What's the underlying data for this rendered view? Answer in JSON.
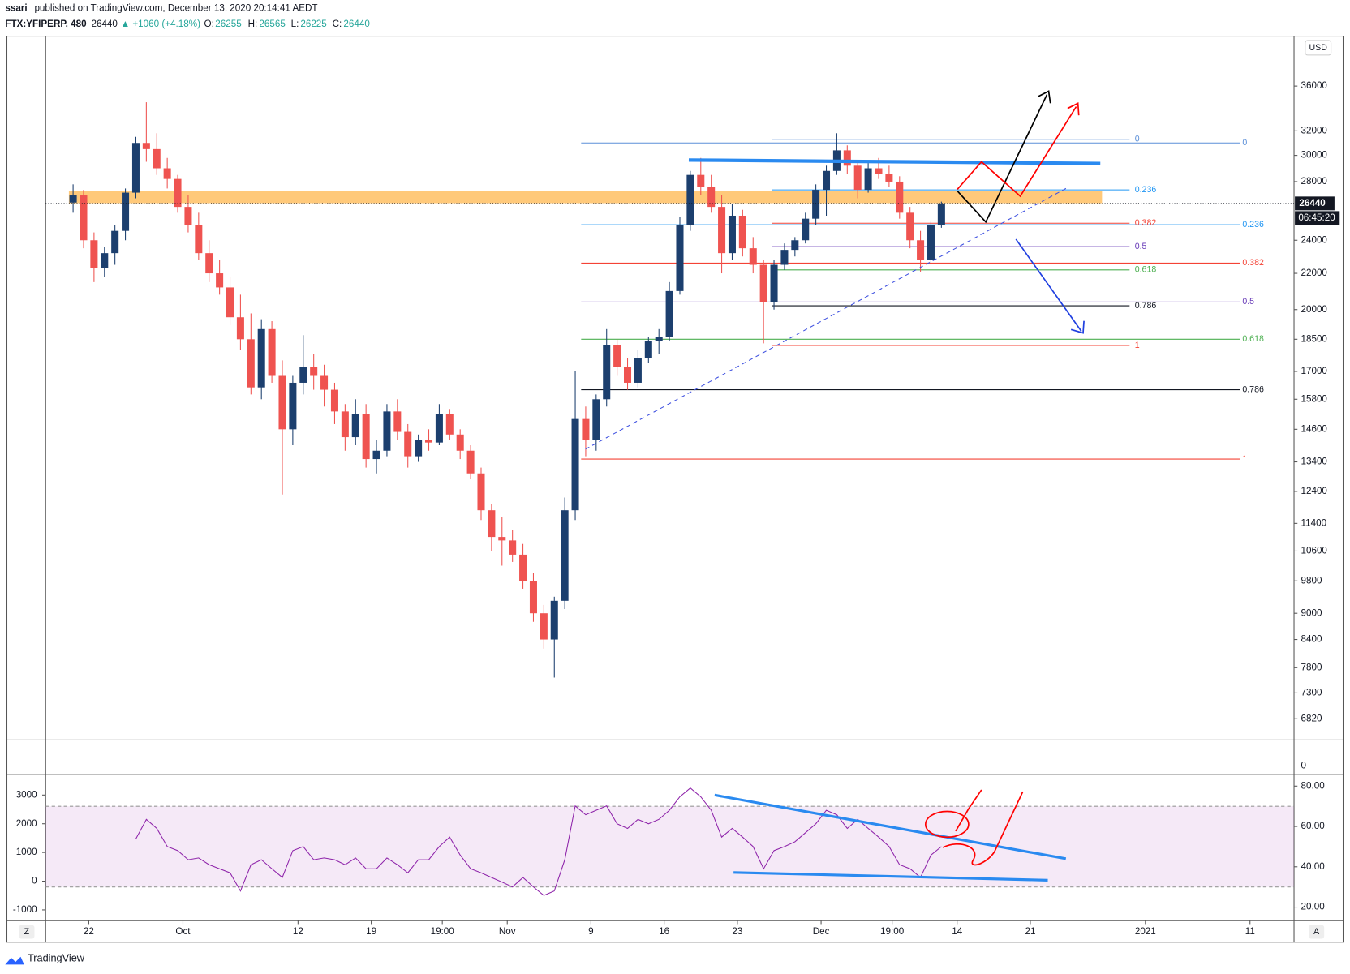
{
  "header": {
    "author": "ssari",
    "published": "published on TradingView.com, December 13, 2020 20:14:41 AEDT",
    "symbol": "FTX:YFIPERP, 480",
    "last": 26440,
    "change": "▲ +1060 (+4.18%)",
    "open_label": "O:",
    "open": 26255,
    "high_label": "H:",
    "high": 26565,
    "low_label": "L:",
    "low": 26225,
    "close_label": "C:",
    "close": 26440
  },
  "chart_data": {
    "type": "candlestick",
    "currency": "USD",
    "log_scale": true,
    "up_color": "#1c3f6e",
    "down_color": "#ef5350",
    "ylim": [
      6450,
      41050
    ],
    "yticks": [
      36000,
      32000,
      30000,
      28000,
      24000,
      22000,
      20000,
      18500,
      17000,
      15800,
      14600,
      13400,
      12400,
      11400,
      10600,
      9800,
      9000,
      8400,
      7800,
      7300,
      6820
    ],
    "xlim": [
      "2020-09-17T21:00",
      "2021-01-15T05:00"
    ],
    "xticks": [
      {
        "value": "2020-09-22",
        "label": "22"
      },
      {
        "value": "2020-10-01",
        "label": "Oct"
      },
      {
        "value": "2020-10-12",
        "label": "12"
      },
      {
        "value": "2020-10-19",
        "label": "19"
      },
      {
        "value": "2020-10-25T19:00",
        "label": "19:00"
      },
      {
        "value": "2020-11-01",
        "label": "Nov"
      },
      {
        "value": "2020-11-09",
        "label": "9"
      },
      {
        "value": "2020-11-16",
        "label": "16"
      },
      {
        "value": "2020-11-23",
        "label": "23"
      },
      {
        "value": "2020-12-01",
        "label": "Dec"
      },
      {
        "value": "2020-12-07T19:00",
        "label": "19:00"
      },
      {
        "value": "2020-12-14",
        "label": "14"
      },
      {
        "value": "2020-12-21",
        "label": "21"
      },
      {
        "value": "2021-01-01",
        "label": "2021"
      },
      {
        "value": "2021-01-11",
        "label": "11"
      }
    ],
    "last_price": 26440,
    "countdown": "06:45:20",
    "zone": [
      26460,
      27320
    ],
    "candles": [
      {
        "date": "2020-09-20",
        "open": 26500,
        "high": 27800,
        "low": 25800,
        "close": 27000
      },
      {
        "date": "2020-09-21",
        "open": 27000,
        "high": 27400,
        "low": 23500,
        "close": 24000
      },
      {
        "date": "2020-09-22",
        "open": 24000,
        "high": 24500,
        "low": 21500,
        "close": 22300
      },
      {
        "date": "2020-09-23",
        "open": 22300,
        "high": 23600,
        "low": 21800,
        "close": 23200
      },
      {
        "date": "2020-09-24",
        "open": 23200,
        "high": 25000,
        "low": 22500,
        "close": 24600
      },
      {
        "date": "2020-09-25",
        "open": 24600,
        "high": 27500,
        "low": 24000,
        "close": 27200
      },
      {
        "date": "2020-09-26",
        "open": 27200,
        "high": 31500,
        "low": 26800,
        "close": 31000
      },
      {
        "date": "2020-09-27",
        "open": 31000,
        "high": 34500,
        "low": 29500,
        "close": 30500
      },
      {
        "date": "2020-09-28",
        "open": 30500,
        "high": 31800,
        "low": 28500,
        "close": 29000
      },
      {
        "date": "2020-09-29",
        "open": 29000,
        "high": 29800,
        "low": 27500,
        "close": 28200
      },
      {
        "date": "2020-09-30",
        "open": 28200,
        "high": 28500,
        "low": 25800,
        "close": 26200
      },
      {
        "date": "2020-10-01",
        "open": 26200,
        "high": 27000,
        "low": 24500,
        "close": 25000
      },
      {
        "date": "2020-10-02",
        "open": 25000,
        "high": 25800,
        "low": 22800,
        "close": 23200
      },
      {
        "date": "2020-10-03",
        "open": 23200,
        "high": 24000,
        "low": 21500,
        "close": 22000
      },
      {
        "date": "2020-10-04",
        "open": 22000,
        "high": 22800,
        "low": 20800,
        "close": 21200
      },
      {
        "date": "2020-10-05",
        "open": 21200,
        "high": 21800,
        "low": 19200,
        "close": 19600
      },
      {
        "date": "2020-10-06",
        "open": 19600,
        "high": 20800,
        "low": 18000,
        "close": 18500
      },
      {
        "date": "2020-10-07",
        "open": 18500,
        "high": 19800,
        "low": 16000,
        "close": 16300
      },
      {
        "date": "2020-10-08",
        "open": 16300,
        "high": 19500,
        "low": 15800,
        "close": 19000
      },
      {
        "date": "2020-10-09",
        "open": 19000,
        "high": 19400,
        "low": 16500,
        "close": 16800
      },
      {
        "date": "2020-10-10",
        "open": 16800,
        "high": 17500,
        "low": 12300,
        "close": 14600
      },
      {
        "date": "2020-10-11",
        "open": 14600,
        "high": 16800,
        "low": 14000,
        "close": 16500
      },
      {
        "date": "2020-10-12",
        "open": 16500,
        "high": 18700,
        "low": 16000,
        "close": 17200
      },
      {
        "date": "2020-10-13",
        "open": 17200,
        "high": 17800,
        "low": 16200,
        "close": 16800
      },
      {
        "date": "2020-10-14",
        "open": 16800,
        "high": 17300,
        "low": 15500,
        "close": 16200
      },
      {
        "date": "2020-10-15",
        "open": 16200,
        "high": 16500,
        "low": 14800,
        "close": 15300
      },
      {
        "date": "2020-10-16",
        "open": 15300,
        "high": 15600,
        "low": 13800,
        "close": 14300
      },
      {
        "date": "2020-10-17",
        "open": 14300,
        "high": 15800,
        "low": 14000,
        "close": 15200
      },
      {
        "date": "2020-10-18",
        "open": 15200,
        "high": 15600,
        "low": 13200,
        "close": 13500
      },
      {
        "date": "2020-10-19",
        "open": 13500,
        "high": 14200,
        "low": 13000,
        "close": 13800
      },
      {
        "date": "2020-10-20",
        "open": 13800,
        "high": 15600,
        "low": 13600,
        "close": 15300
      },
      {
        "date": "2020-10-21",
        "open": 15300,
        "high": 15800,
        "low": 14200,
        "close": 14500
      },
      {
        "date": "2020-10-22",
        "open": 14500,
        "high": 14800,
        "low": 13200,
        "close": 13600
      },
      {
        "date": "2020-10-23",
        "open": 13600,
        "high": 14400,
        "low": 13400,
        "close": 14200
      },
      {
        "date": "2020-10-24",
        "open": 14200,
        "high": 14600,
        "low": 13800,
        "close": 14100
      },
      {
        "date": "2020-10-25",
        "open": 14100,
        "high": 15600,
        "low": 14000,
        "close": 15200
      },
      {
        "date": "2020-10-26",
        "open": 15200,
        "high": 15400,
        "low": 14200,
        "close": 14400
      },
      {
        "date": "2020-10-27",
        "open": 14400,
        "high": 14600,
        "low": 13500,
        "close": 13800
      },
      {
        "date": "2020-10-28",
        "open": 13800,
        "high": 14000,
        "low": 12800,
        "close": 13000
      },
      {
        "date": "2020-10-29",
        "open": 13000,
        "high": 13200,
        "low": 11500,
        "close": 11800
      },
      {
        "date": "2020-10-30",
        "open": 11800,
        "high": 12000,
        "low": 10600,
        "close": 11000
      },
      {
        "date": "2020-10-31",
        "open": 11000,
        "high": 11600,
        "low": 10200,
        "close": 10900
      },
      {
        "date": "2020-11-01",
        "open": 10900,
        "high": 11200,
        "low": 10300,
        "close": 10500
      },
      {
        "date": "2020-11-02",
        "open": 10500,
        "high": 10800,
        "low": 9600,
        "close": 9800
      },
      {
        "date": "2020-11-03",
        "open": 9800,
        "high": 10000,
        "low": 8800,
        "close": 9000
      },
      {
        "date": "2020-11-04",
        "open": 9000,
        "high": 9200,
        "low": 8200,
        "close": 8400
      },
      {
        "date": "2020-11-05",
        "open": 8400,
        "high": 9400,
        "low": 7600,
        "close": 9300
      },
      {
        "date": "2020-11-06",
        "open": 9300,
        "high": 12200,
        "low": 9100,
        "close": 11800
      },
      {
        "date": "2020-11-07",
        "open": 11800,
        "high": 17000,
        "low": 11500,
        "close": 15000
      },
      {
        "date": "2020-11-08",
        "open": 15000,
        "high": 15500,
        "low": 13600,
        "close": 14200
      },
      {
        "date": "2020-11-09",
        "open": 14200,
        "high": 16000,
        "low": 13800,
        "close": 15800
      },
      {
        "date": "2020-11-10",
        "open": 15800,
        "high": 19000,
        "low": 15500,
        "close": 18200
      },
      {
        "date": "2020-11-11",
        "open": 18200,
        "high": 18500,
        "low": 16800,
        "close": 17200
      },
      {
        "date": "2020-11-12",
        "open": 17200,
        "high": 17600,
        "low": 16200,
        "close": 16500
      },
      {
        "date": "2020-11-13",
        "open": 16500,
        "high": 18000,
        "low": 16300,
        "close": 17600
      },
      {
        "date": "2020-11-14",
        "open": 17600,
        "high": 18600,
        "low": 17400,
        "close": 18400
      },
      {
        "date": "2020-11-15",
        "open": 18400,
        "high": 19000,
        "low": 17800,
        "close": 18600
      },
      {
        "date": "2020-11-16",
        "open": 18600,
        "high": 21500,
        "low": 18400,
        "close": 21000
      },
      {
        "date": "2020-11-17",
        "open": 21000,
        "high": 25500,
        "low": 20800,
        "close": 25000
      },
      {
        "date": "2020-11-18",
        "open": 25000,
        "high": 28800,
        "low": 24600,
        "close": 28500
      },
      {
        "date": "2020-11-19",
        "open": 28500,
        "high": 29800,
        "low": 27000,
        "close": 27600
      },
      {
        "date": "2020-11-20",
        "open": 27600,
        "high": 28500,
        "low": 25800,
        "close": 26200
      },
      {
        "date": "2020-11-21",
        "open": 26200,
        "high": 27000,
        "low": 22000,
        "close": 23200
      },
      {
        "date": "2020-11-22",
        "open": 23200,
        "high": 26400,
        "low": 22800,
        "close": 25600
      },
      {
        "date": "2020-11-23",
        "open": 25600,
        "high": 26000,
        "low": 23000,
        "close": 23500
      },
      {
        "date": "2020-11-24",
        "open": 23500,
        "high": 24200,
        "low": 22000,
        "close": 22500
      },
      {
        "date": "2020-11-25",
        "open": 22500,
        "high": 22800,
        "low": 18300,
        "close": 20400
      },
      {
        "date": "2020-11-26",
        "open": 20400,
        "high": 22800,
        "low": 20000,
        "close": 22500
      },
      {
        "date": "2020-11-27",
        "open": 22500,
        "high": 23800,
        "low": 22200,
        "close": 23400
      },
      {
        "date": "2020-11-28",
        "open": 23400,
        "high": 24200,
        "low": 23000,
        "close": 24000
      },
      {
        "date": "2020-11-29",
        "open": 24000,
        "high": 25800,
        "low": 23800,
        "close": 25400
      },
      {
        "date": "2020-11-30",
        "open": 25400,
        "high": 27800,
        "low": 25000,
        "close": 27400
      },
      {
        "date": "2020-12-01",
        "open": 27400,
        "high": 29200,
        "low": 25600,
        "close": 28800
      },
      {
        "date": "2020-12-02",
        "open": 28800,
        "high": 31800,
        "low": 28500,
        "close": 30400
      },
      {
        "date": "2020-12-03",
        "open": 30400,
        "high": 30800,
        "low": 28600,
        "close": 29200
      },
      {
        "date": "2020-12-04",
        "open": 29200,
        "high": 29500,
        "low": 26800,
        "close": 27400
      },
      {
        "date": "2020-12-05",
        "open": 27400,
        "high": 29400,
        "low": 27200,
        "close": 29000
      },
      {
        "date": "2020-12-06",
        "open": 29000,
        "high": 29800,
        "low": 28200,
        "close": 28600
      },
      {
        "date": "2020-12-07",
        "open": 28600,
        "high": 29200,
        "low": 27600,
        "close": 28000
      },
      {
        "date": "2020-12-08",
        "open": 28000,
        "high": 28400,
        "low": 25400,
        "close": 25800
      },
      {
        "date": "2020-12-09",
        "open": 25800,
        "high": 26200,
        "low": 23500,
        "close": 24000
      },
      {
        "date": "2020-12-10",
        "open": 24000,
        "high": 24600,
        "low": 22100,
        "close": 22800
      },
      {
        "date": "2020-12-11",
        "open": 22800,
        "high": 25200,
        "low": 22600,
        "close": 25000
      },
      {
        "date": "2020-12-12",
        "open": 25000,
        "high": 26565,
        "low": 24800,
        "close": 26440
      }
    ],
    "fibs": [
      {
        "levels": [
          {
            "level": 0,
            "price": 31000,
            "color": "#5b8fd8"
          },
          {
            "level": 0.236,
            "price": 25000,
            "color": "#2196f3"
          },
          {
            "level": 0.382,
            "price": 22600,
            "color": "#f44336"
          },
          {
            "level": 0.5,
            "price": 20400,
            "color": "#673ab7"
          },
          {
            "level": 0.618,
            "price": 18500,
            "color": "#4caf50"
          },
          {
            "level": 0.786,
            "price": 16200,
            "color": "#131722"
          },
          {
            "level": 1,
            "price": 13500,
            "color": "#f44336"
          }
        ]
      },
      {
        "levels": [
          {
            "level": 0,
            "price": 31300,
            "color": "#5b8fd8"
          },
          {
            "level": 0.236,
            "price": 27400,
            "color": "#2196f3"
          },
          {
            "level": 0.382,
            "price": 25100,
            "color": "#f44336"
          },
          {
            "level": 0.5,
            "price": 23600,
            "color": "#673ab7"
          },
          {
            "level": 0.618,
            "price": 22200,
            "color": "#4caf50"
          },
          {
            "level": 0.786,
            "price": 20200,
            "color": "#131722"
          },
          {
            "level": 1,
            "price": 18200,
            "color": "#f44336"
          }
        ]
      }
    ],
    "separator_tick": 0,
    "rsi": {
      "color": "#8e24aa",
      "band": [
        30,
        70
      ],
      "ylim": [
        13.3,
        85.8
      ],
      "yticks": [
        {
          "value": 80,
          "label": "80.00"
        },
        {
          "value": 60,
          "label": "60.00"
        },
        {
          "value": 40,
          "label": "40.00"
        },
        {
          "value": 20,
          "label": "20.00"
        }
      ],
      "y2lim": [
        -1375,
        3719
      ],
      "y2ticks": [
        3000,
        2000,
        1000,
        0,
        -1000
      ],
      "values": [
        null,
        null,
        null,
        null,
        null,
        null,
        53.8,
        63.5,
        59,
        50,
        48,
        43.5,
        44.4,
        41,
        39,
        37,
        28,
        41,
        43.5,
        39,
        34.7,
        48,
        50,
        43.5,
        44.4,
        43.5,
        41,
        44.4,
        39,
        39,
        44.4,
        41,
        37,
        43.5,
        43.5,
        50,
        54.7,
        45.8,
        39,
        37,
        34.7,
        32.4,
        30,
        34.7,
        30,
        25.8,
        28,
        43.5,
        70.2,
        65.8,
        68,
        70.2,
        61.3,
        59,
        63.5,
        61.3,
        63.5,
        68,
        74.7,
        79,
        74.7,
        68,
        54.7,
        59,
        54.7,
        50,
        39,
        48,
        50,
        52.4,
        56.9,
        61.3,
        68,
        65.8,
        59,
        63.5,
        59,
        54.7,
        50,
        41,
        39,
        34.7,
        45.8,
        50
      ]
    }
  },
  "footer": {
    "brand": "TradingView",
    "left_button": "Z",
    "right_button": "A"
  }
}
